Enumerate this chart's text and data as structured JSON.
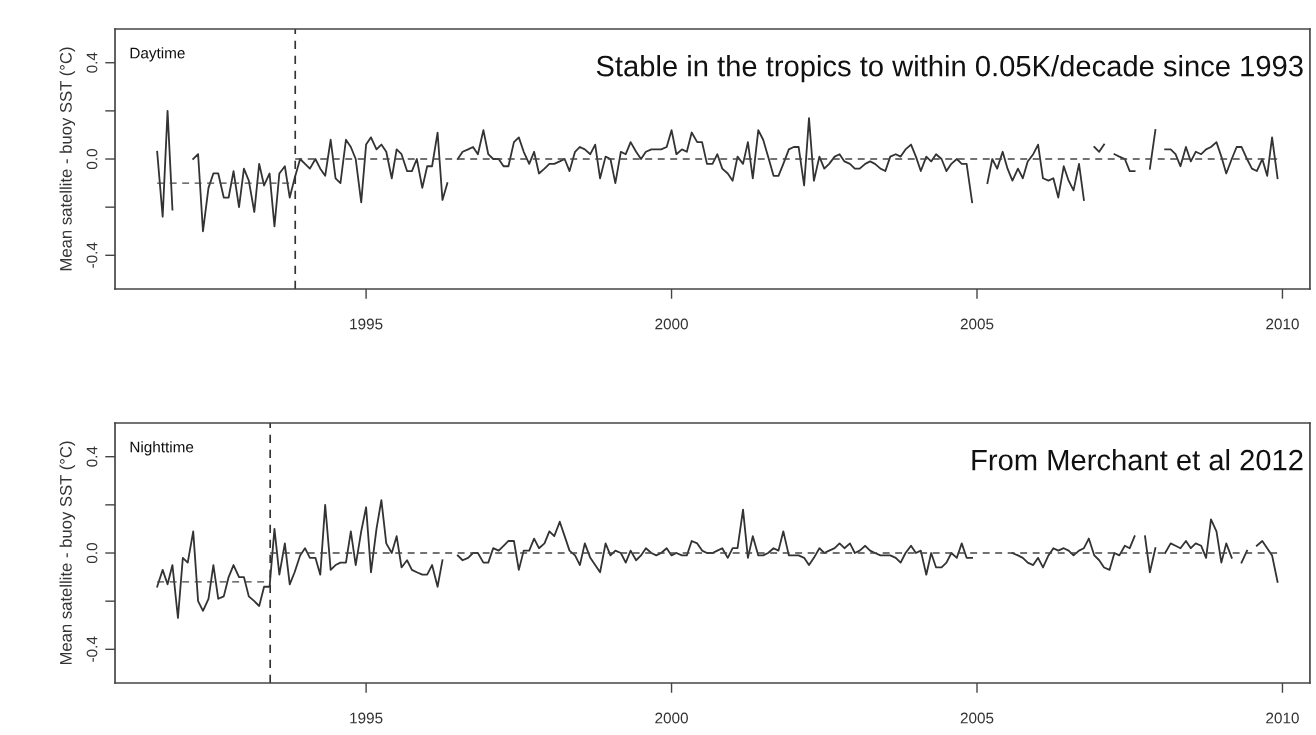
{
  "chart_data": [
    {
      "type": "line",
      "ylabel": "Mean satellite - buoy SST (°C)",
      "annotations": [
        "Daytime",
        "Stable in the tropics to within 0.05K/decade since 1993"
      ],
      "xlim": [
        1990.89,
        2010.45
      ],
      "ylim": [
        -0.54,
        0.54
      ],
      "xticks": [
        1995,
        2000,
        2005,
        2010
      ],
      "yticks": [
        {
          "value": -0.4,
          "label": "-0.4"
        },
        {
          "value": -0.2,
          "label": null
        },
        {
          "value": 0,
          "label": "0.0"
        },
        {
          "value": 0.2,
          "label": null
        },
        {
          "value": 0.4,
          "label": "0.4"
        }
      ],
      "ref_lines": [
        {
          "axis": "x",
          "value": 1993.84,
          "color": "#333333",
          "line_style": "dashed"
        }
      ],
      "series": [
        {
          "color": "#333333",
          "x": [
            1991.58,
            1991.67,
            1991.75,
            1991.83
          ],
          "values": [
            0.03,
            -0.24,
            0.2,
            -0.21
          ]
        },
        {
          "color": "#333333",
          "x": [
            1992.17,
            1992.25,
            1992.33,
            1992.42,
            1992.5,
            1992.58,
            1992.67,
            1992.75,
            1992.83,
            1992.92,
            1993.0,
            1993.08,
            1993.17,
            1993.25,
            1993.33,
            1993.42,
            1993.5,
            1993.58,
            1993.67,
            1993.75,
            1993.83,
            1993.92,
            1994.0,
            1994.08,
            1994.17,
            1994.25,
            1994.33,
            1994.42,
            1994.5,
            1994.58,
            1994.67,
            1994.75,
            1994.83,
            1994.92,
            1995.0,
            1995.08,
            1995.17,
            1995.25,
            1995.33,
            1995.42,
            1995.5,
            1995.58,
            1995.67,
            1995.75,
            1995.83,
            1995.92,
            1996.0,
            1996.08,
            1996.17,
            1996.25,
            1996.33
          ],
          "values": [
            0.0,
            0.02,
            -0.3,
            -0.12,
            -0.06,
            -0.06,
            -0.16,
            -0.16,
            -0.05,
            -0.2,
            -0.04,
            -0.09,
            -0.22,
            -0.02,
            -0.11,
            -0.06,
            -0.28,
            -0.06,
            -0.03,
            -0.16,
            -0.08,
            0.0,
            -0.02,
            -0.04,
            0.0,
            -0.04,
            -0.07,
            0.08,
            -0.08,
            -0.1,
            0.08,
            0.05,
            0.0,
            -0.18,
            0.06,
            0.09,
            0.04,
            0.06,
            0.03,
            -0.08,
            0.04,
            0.02,
            -0.05,
            -0.05,
            0.0,
            -0.12,
            -0.03,
            -0.03,
            0.11,
            -0.17,
            -0.1
          ]
        },
        {
          "color": "#333333",
          "x": [
            1996.5,
            1996.58,
            1996.67,
            1996.75,
            1996.83,
            1996.92,
            1997.0,
            1997.08,
            1997.17,
            1997.25,
            1997.33,
            1997.42,
            1997.5,
            1997.58,
            1997.67,
            1997.75,
            1997.83,
            1997.92,
            1998.0,
            1998.08,
            1998.17,
            1998.25,
            1998.33,
            1998.42,
            1998.5,
            1998.58,
            1998.67,
            1998.75,
            1998.83,
            1998.92,
            1999.0,
            1999.08,
            1999.17,
            1999.25,
            1999.33,
            1999.42,
            1999.5,
            1999.58,
            1999.67,
            1999.75,
            1999.83,
            1999.92,
            2000.0,
            2000.08,
            2000.17,
            2000.25,
            2000.33,
            2000.42,
            2000.5,
            2000.58,
            2000.67,
            2000.75,
            2000.83,
            2000.92,
            2001.0,
            2001.08,
            2001.17,
            2001.25,
            2001.33,
            2001.42,
            2001.5,
            2001.58,
            2001.67,
            2001.75,
            2001.83,
            2001.92,
            2002.0,
            2002.08,
            2002.17,
            2002.25,
            2002.33,
            2002.42,
            2002.5,
            2002.58,
            2002.67,
            2002.75,
            2002.83,
            2002.92,
            2003.0,
            2003.08,
            2003.17,
            2003.25,
            2003.33,
            2003.42,
            2003.5,
            2003.58,
            2003.67,
            2003.75,
            2003.83,
            2003.92,
            2004.0,
            2004.08,
            2004.17,
            2004.25,
            2004.33,
            2004.42,
            2004.5,
            2004.58,
            2004.67,
            2004.75,
            2004.83,
            2004.92
          ],
          "values": [
            0.0,
            0.03,
            0.04,
            0.05,
            0.02,
            0.12,
            0.02,
            0.0,
            0.0,
            -0.03,
            -0.03,
            0.07,
            0.09,
            0.03,
            -0.02,
            0.03,
            -0.06,
            -0.04,
            -0.02,
            -0.02,
            -0.01,
            0.0,
            -0.05,
            0.03,
            0.05,
            0.04,
            0.02,
            0.06,
            -0.08,
            0.01,
            0.0,
            -0.1,
            0.03,
            0.02,
            0.07,
            0.03,
            0.0,
            0.03,
            0.04,
            0.04,
            0.04,
            0.05,
            0.12,
            0.02,
            0.04,
            0.03,
            0.11,
            0.07,
            0.07,
            -0.02,
            -0.02,
            0.02,
            -0.04,
            -0.06,
            -0.09,
            0.01,
            -0.02,
            0.07,
            -0.08,
            0.12,
            0.08,
            0.01,
            -0.07,
            -0.07,
            -0.02,
            0.04,
            0.05,
            0.05,
            -0.11,
            0.17,
            -0.09,
            0.01,
            -0.04,
            -0.02,
            0.01,
            0.02,
            -0.01,
            -0.02,
            -0.04,
            -0.04,
            -0.02,
            -0.01,
            -0.02,
            -0.04,
            -0.05,
            0.01,
            0.02,
            0.01,
            0.04,
            0.06,
            0.01,
            -0.05,
            0.01,
            -0.01,
            0.02,
            0.0,
            -0.05,
            -0.02,
            0.0,
            -0.02,
            -0.02,
            -0.18
          ]
        },
        {
          "color": "#333333",
          "x": [
            2005.17,
            2005.25,
            2005.33,
            2005.42,
            2005.5,
            2005.58,
            2005.67,
            2005.75,
            2005.83,
            2005.92,
            2006.0,
            2006.08,
            2006.17,
            2006.25,
            2006.33,
            2006.42,
            2006.5,
            2006.58,
            2006.67,
            2006.75
          ],
          "values": [
            -0.1,
            0.0,
            -0.04,
            0.03,
            -0.04,
            -0.09,
            -0.04,
            -0.08,
            -0.01,
            0.02,
            0.06,
            -0.08,
            -0.09,
            -0.08,
            -0.16,
            -0.03,
            -0.09,
            -0.13,
            -0.02,
            -0.17
          ]
        },
        {
          "color": "#333333",
          "x": [
            2006.92,
            2007.0,
            2007.08
          ],
          "values": [
            0.05,
            0.03,
            0.06
          ]
        },
        {
          "color": "#333333",
          "x": [
            2007.25,
            2007.33,
            2007.42,
            2007.5,
            2007.58
          ],
          "values": [
            0.02,
            0.01,
            0.0,
            -0.05,
            -0.05
          ]
        },
        {
          "color": "#333333",
          "x": [
            2007.83,
            2007.92
          ],
          "values": [
            -0.04,
            0.12
          ]
        },
        {
          "color": "#333333",
          "x": [
            2008.08,
            2008.17,
            2008.25,
            2008.33,
            2008.42,
            2008.5,
            2008.58,
            2008.67,
            2008.75,
            2008.83,
            2008.92,
            2009.0,
            2009.08,
            2009.17,
            2009.25,
            2009.33,
            2009.42,
            2009.5,
            2009.58,
            2009.67,
            2009.75,
            2009.83,
            2009.92
          ],
          "values": [
            0.04,
            0.04,
            0.02,
            -0.03,
            0.05,
            -0.01,
            0.03,
            0.02,
            0.04,
            0.05,
            0.07,
            0.01,
            -0.06,
            0.0,
            0.05,
            0.05,
            0.0,
            -0.04,
            -0.05,
            0.0,
            -0.07,
            0.09,
            -0.08
          ]
        },
        {
          "color": "#444444",
          "line_style": "dashed",
          "x": [
            1991.58,
            1993.84
          ],
          "values": [
            -0.1,
            -0.1
          ]
        },
        {
          "color": "#444444",
          "line_style": "dashed",
          "x": [
            1993.84,
            2009.92
          ],
          "values": [
            0,
            0
          ]
        }
      ]
    },
    {
      "type": "line",
      "ylabel": "Mean satellite - buoy SST (°C)",
      "annotations": [
        "Nighttime",
        "From Merchant et al 2012"
      ],
      "xlim": [
        1990.89,
        2010.45
      ],
      "ylim": [
        -0.54,
        0.54
      ],
      "xticks": [
        1995,
        2000,
        2005,
        2010
      ],
      "yticks": [
        {
          "value": -0.4,
          "label": "-0.4"
        },
        {
          "value": -0.2,
          "label": null
        },
        {
          "value": 0,
          "label": "0.0"
        },
        {
          "value": 0.2,
          "label": null
        },
        {
          "value": 0.4,
          "label": "0.4"
        }
      ],
      "ref_lines": [
        {
          "axis": "x",
          "value": 1993.43,
          "color": "#333333",
          "line_style": "dashed"
        }
      ],
      "series": [
        {
          "color": "#333333",
          "x": [
            1991.58,
            1991.67,
            1991.75,
            1991.83,
            1991.92,
            1992.0,
            1992.08,
            1992.17,
            1992.25,
            1992.33,
            1992.42,
            1992.5,
            1992.58,
            1992.67,
            1992.75,
            1992.83,
            1992.92,
            1993.0,
            1993.08,
            1993.17,
            1993.25,
            1993.33,
            1993.42,
            1993.5,
            1993.58,
            1993.67,
            1993.75,
            1993.83,
            1993.92,
            1994.0,
            1994.08,
            1994.17,
            1994.25,
            1994.33,
            1994.42,
            1994.5,
            1994.58,
            1994.67,
            1994.75,
            1994.83,
            1994.92,
            1995.0,
            1995.08,
            1995.17,
            1995.25,
            1995.33,
            1995.42,
            1995.5,
            1995.58,
            1995.67,
            1995.75,
            1995.83,
            1995.92,
            1996.0,
            1996.08,
            1996.17,
            1996.25
          ],
          "values": [
            -0.14,
            -0.07,
            -0.13,
            -0.05,
            -0.27,
            -0.02,
            -0.04,
            0.09,
            -0.2,
            -0.24,
            -0.19,
            -0.05,
            -0.19,
            -0.18,
            -0.1,
            -0.05,
            -0.1,
            -0.1,
            -0.18,
            -0.2,
            -0.22,
            -0.14,
            -0.14,
            0.1,
            -0.09,
            0.04,
            -0.13,
            -0.08,
            -0.01,
            0.02,
            -0.02,
            -0.02,
            -0.09,
            0.2,
            -0.07,
            -0.05,
            -0.04,
            -0.04,
            0.09,
            -0.05,
            0.09,
            0.19,
            -0.08,
            0.1,
            0.22,
            0.04,
            0.0,
            0.07,
            -0.06,
            -0.03,
            -0.07,
            -0.08,
            -0.09,
            -0.09,
            -0.05,
            -0.14,
            -0.03
          ]
        },
        {
          "color": "#333333",
          "x": [
            1996.5,
            1996.58,
            1996.67,
            1996.75,
            1996.83,
            1996.92,
            1997.0,
            1997.08,
            1997.17,
            1997.25,
            1997.33,
            1997.42,
            1997.5,
            1997.58,
            1997.67,
            1997.75,
            1997.83,
            1997.92,
            1998.0,
            1998.08,
            1998.17,
            1998.25,
            1998.33,
            1998.42,
            1998.5,
            1998.58,
            1998.67,
            1998.75,
            1998.83,
            1998.92,
            1999.0,
            1999.08,
            1999.17,
            1999.25,
            1999.33,
            1999.42,
            1999.5,
            1999.58,
            1999.67,
            1999.75,
            1999.83,
            1999.92,
            2000.0,
            2000.08,
            2000.17,
            2000.25,
            2000.33,
            2000.42,
            2000.5,
            2000.58,
            2000.67,
            2000.75,
            2000.83,
            2000.92,
            2001.0,
            2001.08,
            2001.17,
            2001.25,
            2001.33,
            2001.42,
            2001.5,
            2001.58,
            2001.67,
            2001.75,
            2001.83,
            2001.92,
            2002.0,
            2002.08,
            2002.17,
            2002.25,
            2002.33,
            2002.42,
            2002.5,
            2002.58,
            2002.67,
            2002.75,
            2002.83,
            2002.92,
            2003.0,
            2003.08,
            2003.17,
            2003.25,
            2003.33,
            2003.42,
            2003.5,
            2003.58,
            2003.67,
            2003.75,
            2003.83,
            2003.92,
            2004.0,
            2004.08,
            2004.17,
            2004.25,
            2004.33,
            2004.42,
            2004.5,
            2004.58,
            2004.67,
            2004.75,
            2004.83,
            2004.92
          ],
          "values": [
            -0.01,
            -0.03,
            -0.02,
            0.0,
            0.0,
            -0.04,
            -0.04,
            0.02,
            0.01,
            0.03,
            0.05,
            0.05,
            -0.07,
            0.01,
            0.01,
            0.06,
            0.02,
            0.04,
            0.09,
            0.07,
            0.13,
            0.07,
            0.01,
            -0.01,
            -0.05,
            0.04,
            -0.02,
            -0.05,
            -0.08,
            0.04,
            -0.01,
            0.01,
            0.0,
            -0.04,
            0.01,
            -0.03,
            -0.01,
            0.02,
            0.0,
            -0.01,
            0.0,
            0.02,
            -0.01,
            0.0,
            -0.01,
            -0.01,
            0.05,
            0.04,
            0.01,
            0.0,
            0.0,
            0.01,
            0.02,
            -0.02,
            0.02,
            0.02,
            0.18,
            -0.02,
            0.07,
            -0.01,
            -0.01,
            0.0,
            0.02,
            0.01,
            0.09,
            -0.01,
            -0.01,
            -0.01,
            -0.02,
            -0.05,
            -0.02,
            0.02,
            0.0,
            0.01,
            0.02,
            0.04,
            0.02,
            0.04,
            0.0,
            0.01,
            0.03,
            0.01,
            0.0,
            -0.01,
            -0.01,
            -0.01,
            -0.02,
            -0.04,
            0.0,
            0.03,
            0.0,
            0.01,
            -0.09,
            0.0,
            -0.06,
            -0.06,
            -0.04,
            0.0,
            -0.02,
            0.04,
            -0.02,
            -0.02
          ]
        },
        {
          "color": "#333333",
          "x": [
            2005.58,
            2005.67,
            2005.75,
            2005.83,
            2005.92,
            2006.0,
            2006.08,
            2006.17,
            2006.25,
            2006.33,
            2006.42,
            2006.5,
            2006.58,
            2006.67,
            2006.75,
            2006.83,
            2006.92,
            2007.0,
            2007.08,
            2007.17,
            2007.25,
            2007.33,
            2007.42,
            2007.5,
            2007.58
          ],
          "values": [
            0.0,
            -0.01,
            -0.02,
            -0.04,
            -0.05,
            -0.02,
            -0.06,
            -0.01,
            0.02,
            0.01,
            0.02,
            0.01,
            -0.01,
            0.01,
            0.02,
            0.06,
            -0.01,
            -0.03,
            -0.06,
            -0.07,
            0.0,
            -0.01,
            0.03,
            0.02,
            0.07
          ]
        },
        {
          "color": "#333333",
          "x": [
            2007.75,
            2007.83,
            2007.92
          ],
          "values": [
            0.07,
            -0.08,
            0.02
          ]
        },
        {
          "color": "#333333",
          "x": [
            2008.08,
            2008.17,
            2008.25,
            2008.33,
            2008.42,
            2008.5,
            2008.58,
            2008.67,
            2008.75,
            2008.83,
            2008.92,
            2009.0,
            2009.08,
            2009.17
          ],
          "values": [
            0.0,
            0.04,
            0.03,
            0.02,
            0.05,
            0.02,
            0.04,
            0.03,
            -0.02,
            0.14,
            0.09,
            -0.04,
            0.04,
            -0.02
          ]
        },
        {
          "color": "#333333",
          "x": [
            2009.33,
            2009.42
          ],
          "values": [
            -0.04,
            0.01
          ]
        },
        {
          "color": "#333333",
          "x": [
            2009.58,
            2009.67,
            2009.75,
            2009.83,
            2009.92
          ],
          "values": [
            0.03,
            0.05,
            0.02,
            -0.01,
            -0.12
          ]
        },
        {
          "color": "#444444",
          "line_style": "dashed",
          "x": [
            1991.58,
            1993.43
          ],
          "values": [
            -0.12,
            -0.12
          ]
        },
        {
          "color": "#444444",
          "line_style": "dashed",
          "x": [
            1993.43,
            2009.92
          ],
          "values": [
            0,
            0
          ]
        }
      ]
    }
  ]
}
